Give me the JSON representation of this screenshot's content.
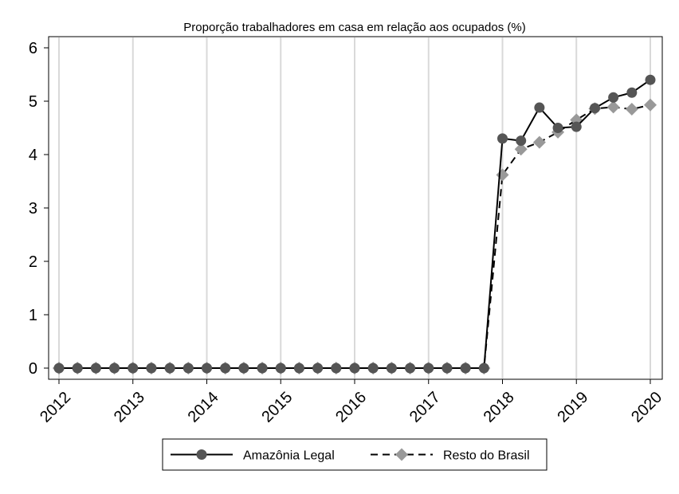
{
  "chart_data": {
    "type": "line",
    "title": "Proporção trabalhadores em casa em relação aos ocupados (%)",
    "xlabel": "",
    "ylabel": "",
    "x_ticks": [
      "2012",
      "2013",
      "2014",
      "2015",
      "2016",
      "2017",
      "2018",
      "2019",
      "2020"
    ],
    "y_ticks": [
      "0",
      "1",
      "2",
      "3",
      "4",
      "5",
      "6"
    ],
    "ylim": [
      0,
      6
    ],
    "xlim": [
      2012,
      2020
    ],
    "grid": "vertical",
    "legend_position": "bottom",
    "series": [
      {
        "name": "Amazônia Legal",
        "style": "solid",
        "marker": "circle",
        "color": "#555555",
        "points": [
          [
            2012.0,
            0
          ],
          [
            2012.25,
            0
          ],
          [
            2012.5,
            0
          ],
          [
            2012.75,
            0
          ],
          [
            2013.0,
            0
          ],
          [
            2013.25,
            0
          ],
          [
            2013.5,
            0
          ],
          [
            2013.75,
            0
          ],
          [
            2014.0,
            0
          ],
          [
            2014.25,
            0
          ],
          [
            2014.5,
            0
          ],
          [
            2014.75,
            0
          ],
          [
            2015.0,
            0
          ],
          [
            2015.25,
            0
          ],
          [
            2015.5,
            0
          ],
          [
            2015.75,
            0
          ],
          [
            2016.0,
            0
          ],
          [
            2016.25,
            0
          ],
          [
            2016.5,
            0
          ],
          [
            2016.75,
            0
          ],
          [
            2017.0,
            0
          ],
          [
            2017.25,
            0
          ],
          [
            2017.5,
            0
          ],
          [
            2017.75,
            0
          ],
          [
            2018.0,
            4.3
          ],
          [
            2018.25,
            4.26
          ],
          [
            2018.5,
            4.88
          ],
          [
            2018.75,
            4.5
          ],
          [
            2019.0,
            4.52
          ],
          [
            2019.25,
            4.87
          ],
          [
            2019.5,
            5.07
          ],
          [
            2019.75,
            5.16
          ],
          [
            2020.0,
            5.4
          ]
        ]
      },
      {
        "name": "Resto do Brasil",
        "style": "dashed",
        "marker": "diamond",
        "color": "#999999",
        "points": [
          [
            2012.0,
            0
          ],
          [
            2012.25,
            0
          ],
          [
            2012.5,
            0
          ],
          [
            2012.75,
            0
          ],
          [
            2013.0,
            0
          ],
          [
            2013.25,
            0
          ],
          [
            2013.5,
            0
          ],
          [
            2013.75,
            0
          ],
          [
            2014.0,
            0
          ],
          [
            2014.25,
            0
          ],
          [
            2014.5,
            0
          ],
          [
            2014.75,
            0
          ],
          [
            2015.0,
            0
          ],
          [
            2015.25,
            0
          ],
          [
            2015.5,
            0
          ],
          [
            2015.75,
            0
          ],
          [
            2016.0,
            0
          ],
          [
            2016.25,
            0
          ],
          [
            2016.5,
            0
          ],
          [
            2016.75,
            0
          ],
          [
            2017.0,
            0
          ],
          [
            2017.25,
            0
          ],
          [
            2017.5,
            0
          ],
          [
            2017.75,
            0
          ],
          [
            2018.0,
            3.62
          ],
          [
            2018.25,
            4.1
          ],
          [
            2018.5,
            4.23
          ],
          [
            2018.75,
            4.42
          ],
          [
            2019.0,
            4.65
          ],
          [
            2019.25,
            4.86
          ],
          [
            2019.5,
            4.89
          ],
          [
            2019.75,
            4.85
          ],
          [
            2020.0,
            4.93
          ]
        ]
      }
    ]
  }
}
